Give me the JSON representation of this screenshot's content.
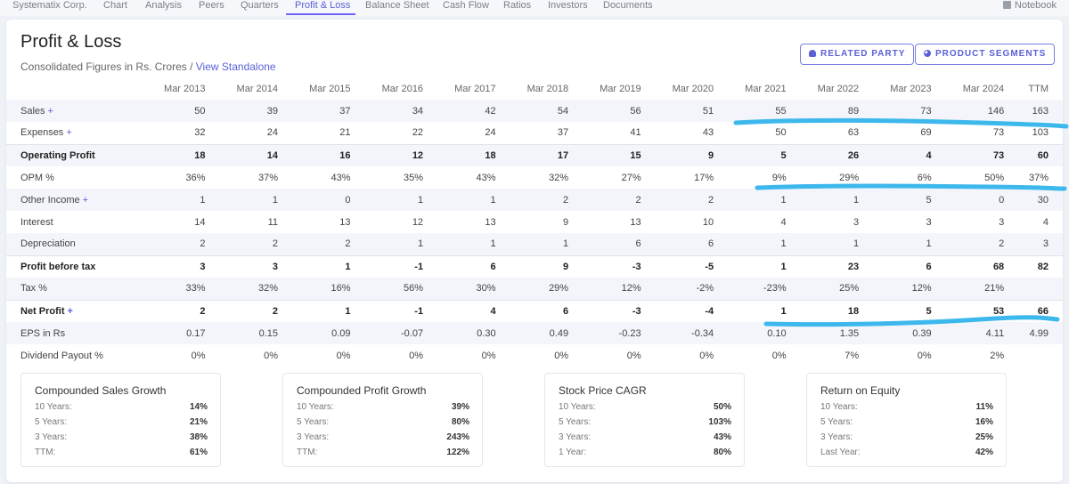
{
  "nav": {
    "items": [
      "Systematix Corp.",
      "Chart",
      "Analysis",
      "Peers",
      "Quarters",
      "Profit & Loss",
      "Balance Sheet",
      "Cash Flow",
      "Ratios",
      "Investors",
      "Documents"
    ],
    "active": "Profit & Loss",
    "notebook": "Notebook"
  },
  "header": {
    "title": "Profit & Loss",
    "subtitle": "Consolidated Figures in Rs. Crores / ",
    "subtitle_link": "View Standalone",
    "related_party": "RELATED PARTY",
    "product_segments": "PRODUCT SEGMENTS"
  },
  "table": {
    "columns": [
      "Mar 2013",
      "Mar 2014",
      "Mar 2015",
      "Mar 2016",
      "Mar 2017",
      "Mar 2018",
      "Mar 2019",
      "Mar 2020",
      "Mar 2021",
      "Mar 2022",
      "Mar 2023",
      "Mar 2024",
      "TTM"
    ],
    "rows": [
      {
        "label": "Sales",
        "plus": true,
        "bold": false,
        "values": [
          "50",
          "39",
          "37",
          "34",
          "42",
          "54",
          "56",
          "51",
          "55",
          "89",
          "73",
          "146",
          "163"
        ]
      },
      {
        "label": "Expenses",
        "plus": true,
        "bold": false,
        "values": [
          "32",
          "24",
          "21",
          "22",
          "24",
          "37",
          "41",
          "43",
          "50",
          "63",
          "69",
          "73",
          "103"
        ]
      },
      {
        "label": "Operating Profit",
        "plus": false,
        "bold": true,
        "values": [
          "18",
          "14",
          "16",
          "12",
          "18",
          "17",
          "15",
          "9",
          "5",
          "26",
          "4",
          "73",
          "60"
        ]
      },
      {
        "label": "OPM %",
        "plus": false,
        "bold": false,
        "values": [
          "36%",
          "37%",
          "43%",
          "35%",
          "43%",
          "32%",
          "27%",
          "17%",
          "9%",
          "29%",
          "6%",
          "50%",
          "37%"
        ]
      },
      {
        "label": "Other Income",
        "plus": true,
        "bold": false,
        "values": [
          "1",
          "1",
          "0",
          "1",
          "1",
          "2",
          "2",
          "2",
          "1",
          "1",
          "5",
          "0",
          "30"
        ]
      },
      {
        "label": "Interest",
        "plus": false,
        "bold": false,
        "values": [
          "14",
          "11",
          "13",
          "12",
          "13",
          "9",
          "13",
          "10",
          "4",
          "3",
          "3",
          "3",
          "4"
        ]
      },
      {
        "label": "Depreciation",
        "plus": false,
        "bold": false,
        "values": [
          "2",
          "2",
          "2",
          "1",
          "1",
          "1",
          "6",
          "6",
          "1",
          "1",
          "1",
          "2",
          "3"
        ]
      },
      {
        "label": "Profit before tax",
        "plus": false,
        "bold": true,
        "values": [
          "3",
          "3",
          "1",
          "-1",
          "6",
          "9",
          "-3",
          "-5",
          "1",
          "23",
          "6",
          "68",
          "82"
        ]
      },
      {
        "label": "Tax %",
        "plus": false,
        "bold": false,
        "values": [
          "33%",
          "32%",
          "16%",
          "56%",
          "30%",
          "29%",
          "12%",
          "-2%",
          "-23%",
          "25%",
          "12%",
          "21%",
          ""
        ]
      },
      {
        "label": "Net Profit",
        "plus": true,
        "bold": true,
        "values": [
          "2",
          "2",
          "1",
          "-1",
          "4",
          "6",
          "-3",
          "-4",
          "1",
          "18",
          "5",
          "53",
          "66"
        ]
      },
      {
        "label": "EPS in Rs",
        "plus": false,
        "bold": false,
        "values": [
          "0.17",
          "0.15",
          "0.09",
          "-0.07",
          "0.30",
          "0.49",
          "-0.23",
          "-0.34",
          "0.10",
          "1.35",
          "0.39",
          "4.11",
          "4.99"
        ]
      },
      {
        "label": "Dividend Payout %",
        "plus": false,
        "bold": false,
        "values": [
          "0%",
          "0%",
          "0%",
          "0%",
          "0%",
          "0%",
          "0%",
          "0%",
          "0%",
          "7%",
          "0%",
          "2%",
          ""
        ]
      }
    ]
  },
  "stats": [
    {
      "title": "Compounded Sales Growth",
      "rows": [
        {
          "k": "10 Years:",
          "v": "14%"
        },
        {
          "k": "5 Years:",
          "v": "21%"
        },
        {
          "k": "3 Years:",
          "v": "38%"
        },
        {
          "k": "TTM:",
          "v": "61%"
        }
      ]
    },
    {
      "title": "Compounded Profit Growth",
      "rows": [
        {
          "k": "10 Years:",
          "v": "39%"
        },
        {
          "k": "5 Years:",
          "v": "80%"
        },
        {
          "k": "3 Years:",
          "v": "243%"
        },
        {
          "k": "TTM:",
          "v": "122%"
        }
      ]
    },
    {
      "title": "Stock Price CAGR",
      "rows": [
        {
          "k": "10 Years:",
          "v": "50%"
        },
        {
          "k": "5 Years:",
          "v": "103%"
        },
        {
          "k": "3 Years:",
          "v": "43%"
        },
        {
          "k": "1 Year:",
          "v": "80%"
        }
      ]
    },
    {
      "title": "Return on Equity",
      "rows": [
        {
          "k": "10 Years:",
          "v": "11%"
        },
        {
          "k": "5 Years:",
          "v": "16%"
        },
        {
          "k": "3 Years:",
          "v": "25%"
        },
        {
          "k": "Last Year:",
          "v": "42%"
        }
      ]
    }
  ],
  "colors": {
    "accent": "#5a5fd6",
    "highlight": "#3db8ec"
  }
}
